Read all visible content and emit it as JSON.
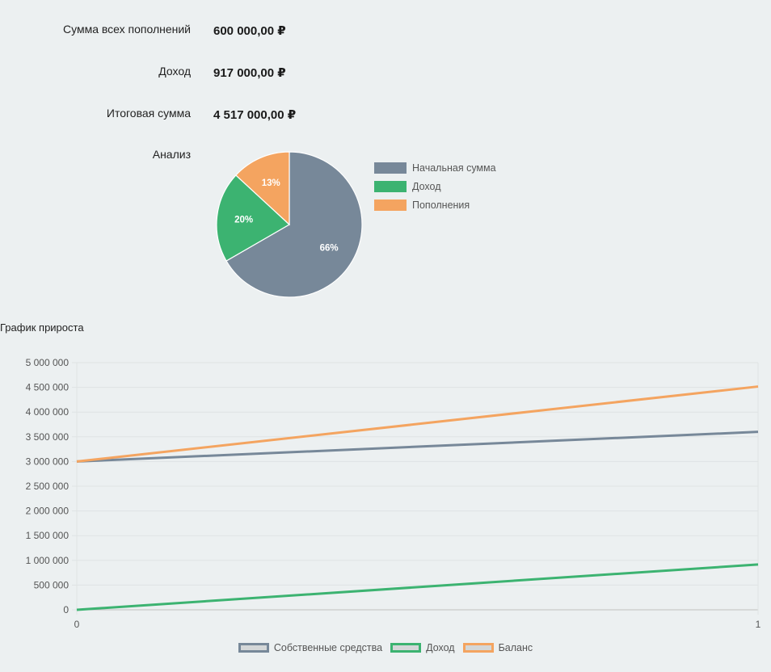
{
  "summary": {
    "deposits_label": "Сумма всех пополнений",
    "deposits_value": "600 000,00 ₽",
    "income_label": "Доход",
    "income_value": "917 000,00 ₽",
    "total_label": "Итоговая сумма",
    "total_value": "4 517 000,00 ₽",
    "analysis_label": "Анализ"
  },
  "growth_title": "График прироста",
  "chart_data": [
    {
      "type": "pie",
      "labels": [
        "Начальная сумма",
        "Доход",
        "Пополнения"
      ],
      "values": [
        66,
        20,
        13
      ],
      "value_labels": [
        "66%",
        "20%",
        "13%"
      ],
      "colors": [
        "#778899",
        "#3cb371",
        "#f4a460"
      ],
      "legend": "right"
    },
    {
      "type": "line",
      "x": [
        0,
        1
      ],
      "series": [
        {
          "name": "Собственные средства",
          "values": [
            3000000,
            3600000
          ],
          "color": "#778899"
        },
        {
          "name": "Доход",
          "values": [
            0,
            917000
          ],
          "color": "#3cb371"
        },
        {
          "name": "Баланс",
          "values": [
            3000000,
            4517000
          ],
          "color": "#f4a460"
        }
      ],
      "ylim": [
        0,
        5000000
      ],
      "yticks": [
        0,
        500000,
        1000000,
        1500000,
        2000000,
        2500000,
        3000000,
        3500000,
        4000000,
        4500000,
        5000000
      ],
      "ytick_labels": [
        "0",
        "500 000",
        "1 000 000",
        "1 500 000",
        "2 000 000",
        "2 500 000",
        "3 000 000",
        "3 500 000",
        "4 000 000",
        "4 500 000",
        "5 000 000"
      ],
      "xticks": [
        0,
        1
      ],
      "xtick_labels": [
        "0",
        "1"
      ],
      "grid": true,
      "legend": "bottom"
    }
  ]
}
